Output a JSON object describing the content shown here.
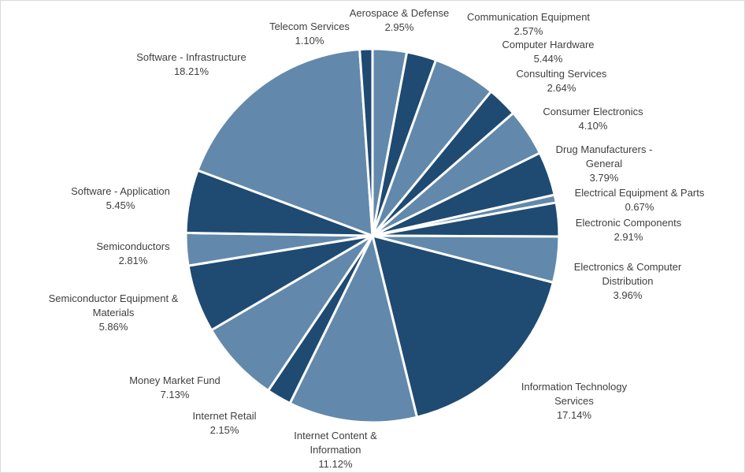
{
  "chart_data": {
    "type": "pie",
    "title": "",
    "colors": {
      "light": "#6289AB",
      "dark": "#1F4A72",
      "label_text": "#404040"
    },
    "slices": [
      {
        "label_lines": [
          "Aerospace & Defense"
        ],
        "value": 2.95,
        "pct": "2.95%"
      },
      {
        "label_lines": [
          "Communication Equipment"
        ],
        "value": 2.57,
        "pct": "2.57%"
      },
      {
        "label_lines": [
          "Computer Hardware"
        ],
        "value": 5.44,
        "pct": "5.44%"
      },
      {
        "label_lines": [
          "Consulting Services"
        ],
        "value": 2.64,
        "pct": "2.64%"
      },
      {
        "label_lines": [
          "Consumer Electronics"
        ],
        "value": 4.1,
        "pct": "4.10%"
      },
      {
        "label_lines": [
          "Drug Manufacturers -",
          "General"
        ],
        "value": 3.79,
        "pct": "3.79%"
      },
      {
        "label_lines": [
          "Electrical Equipment & Parts"
        ],
        "value": 0.67,
        "pct": "0.67%"
      },
      {
        "label_lines": [
          "Electronic Components"
        ],
        "value": 2.91,
        "pct": "2.91%"
      },
      {
        "label_lines": [
          "Electronics & Computer",
          "Distribution"
        ],
        "value": 3.96,
        "pct": "3.96%"
      },
      {
        "label_lines": [
          "Information Technology",
          "Services"
        ],
        "value": 17.14,
        "pct": "17.14%"
      },
      {
        "label_lines": [
          "Internet Content &",
          "Information"
        ],
        "value": 11.12,
        "pct": "11.12%"
      },
      {
        "label_lines": [
          "Internet Retail"
        ],
        "value": 2.15,
        "pct": "2.15%"
      },
      {
        "label_lines": [
          "Money Market Fund"
        ],
        "value": 7.13,
        "pct": "7.13%"
      },
      {
        "label_lines": [
          "Semiconductor Equipment &",
          "Materials"
        ],
        "value": 5.86,
        "pct": "5.86%"
      },
      {
        "label_lines": [
          "Semiconductors"
        ],
        "value": 2.81,
        "pct": "2.81%"
      },
      {
        "label_lines": [
          "Software - Application"
        ],
        "value": 5.45,
        "pct": "5.45%"
      },
      {
        "label_lines": [
          "Software - Infrastructure"
        ],
        "value": 18.21,
        "pct": "18.21%"
      },
      {
        "label_lines": [
          "Telecom Services"
        ],
        "value": 1.1,
        "pct": "1.10%"
      }
    ]
  }
}
